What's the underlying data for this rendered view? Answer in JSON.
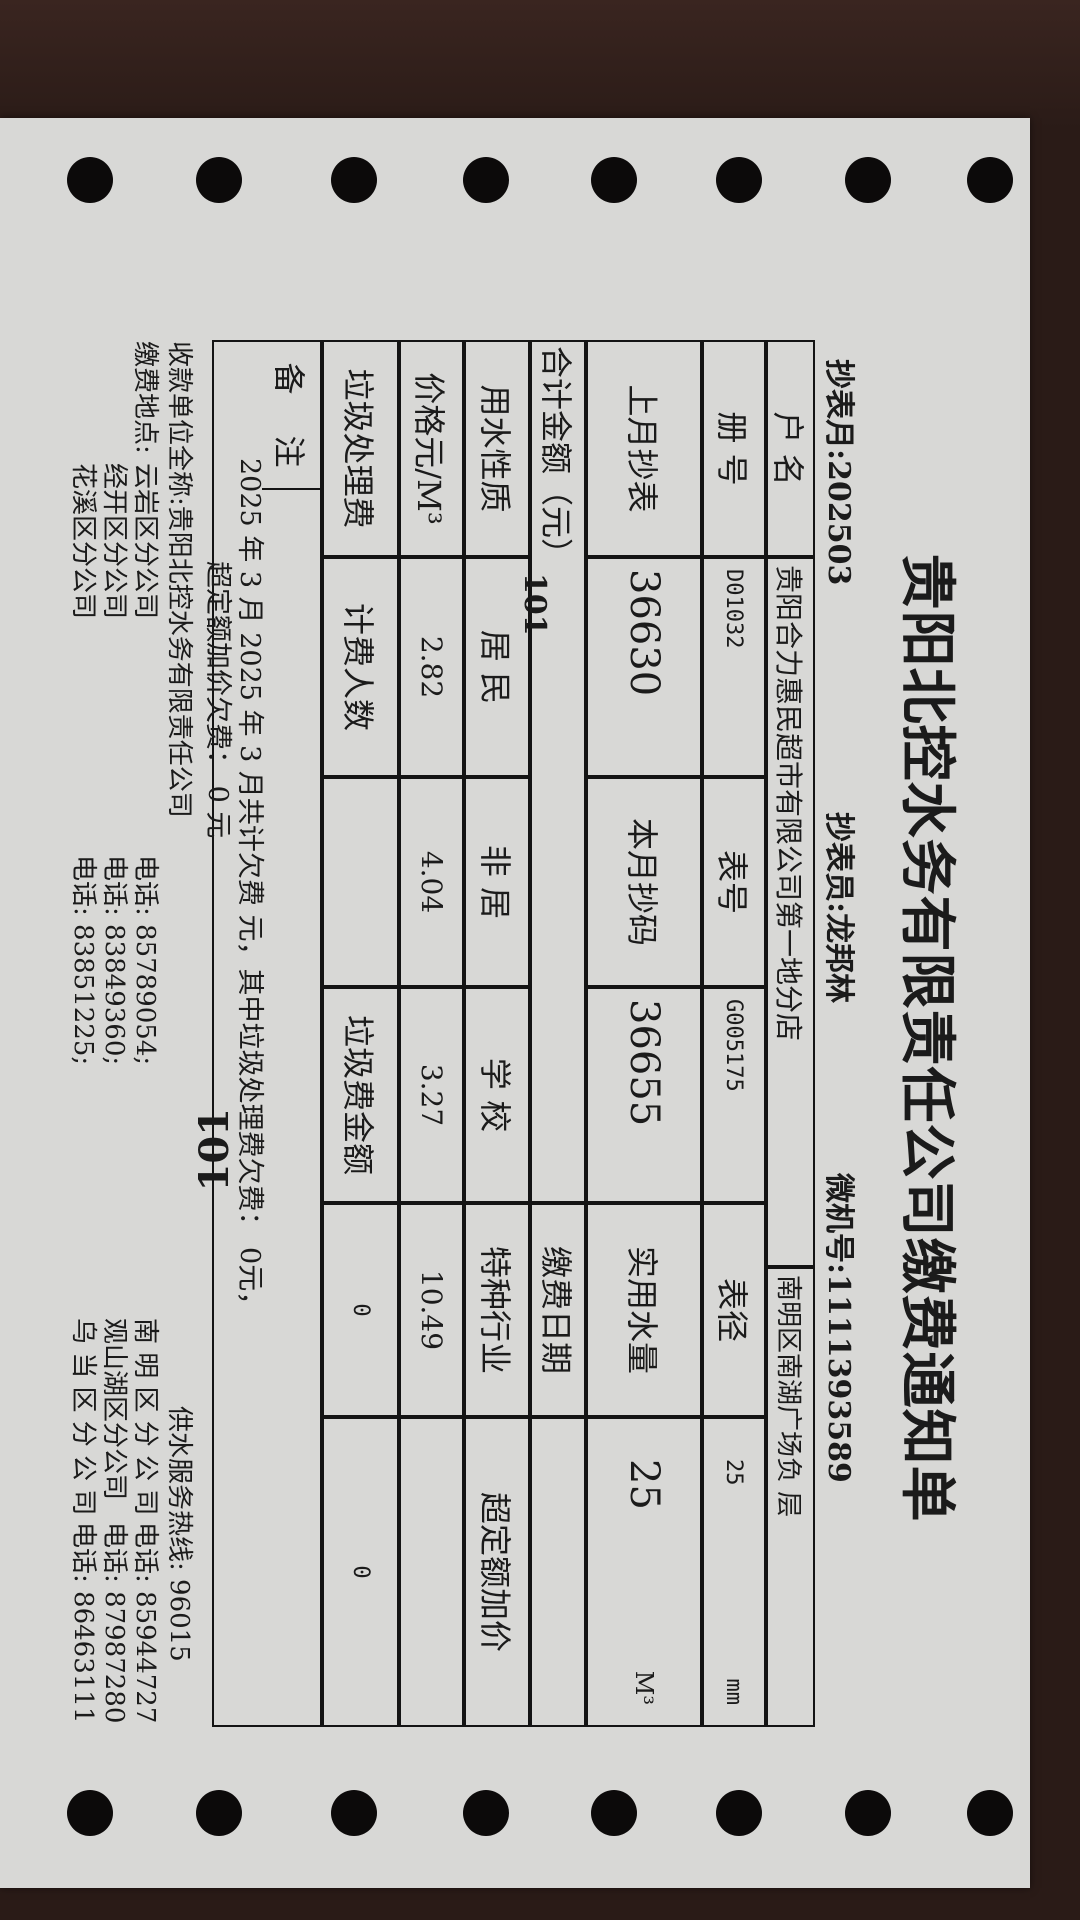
{
  "title": "贵阳北控水务有限责任公司缴费通知单",
  "header": {
    "reading_month": "抄表月:202503",
    "meter_reader": "抄表员:龙邦林",
    "computer_no": "微机号:1111393589"
  },
  "table": {
    "account_name_label": "户 名",
    "account_name": "贵阳合力惠民超市有限公司第一地分店",
    "address": "南明区南湖广场负 层",
    "book_no_label": "册 号",
    "book_no": "D01032",
    "meter_no_label": "表号",
    "meter_no": "G005175",
    "meter_diameter_label": "表径",
    "meter_diameter": "25",
    "meter_diameter_unit": "mm",
    "last_reading_label": "上月抄表",
    "last_reading": "36630",
    "current_reading_label": "本月抄码",
    "current_reading": "36655",
    "actual_usage_label": "实用水量",
    "actual_usage": "25",
    "actual_usage_unit": "M³",
    "total_label": "合计金额（元）",
    "total_amount": "101",
    "payment_date_label": "缴费日期",
    "payment_date": "",
    "water_type_label": "用水性质",
    "water_types": [
      "居 民",
      "非 居",
      "学 校",
      "特种行业",
      "超定额加价"
    ],
    "price_label": "价格元/M³",
    "prices": [
      "2.82",
      "4.04",
      "3.27",
      "10.49",
      ""
    ],
    "garbage_fee_label": "垃圾处理费",
    "billing_people_label": "计费人数",
    "billing_people": "",
    "garbage_amount_label": "垃圾费金额",
    "garbage_amount": "0",
    "garbage_extra": "0",
    "remarks_label_1": "备",
    "remarks_label_2": "注"
  },
  "remarks": {
    "line1": "2025 年  3  月 2025 年  3  月共计欠费          元，其中垃圾处理费欠费：        0元，",
    "line2": "超定额加价欠费：   0     元",
    "arrears_total": "101"
  },
  "footer": {
    "payee": "收款单位全称:贵阳北控水务有限责任公司",
    "payment_place_label": "缴费地点:",
    "branches_left": [
      {
        "name": "云岩区分公司",
        "phone": "电话:  85789054;"
      },
      {
        "name": "经开区分公司",
        "phone": "电话:  83849360;"
      },
      {
        "name": "花溪区分公司",
        "phone": "电话:  83851225;"
      }
    ],
    "hotline": "供水服务热线:  96015",
    "branches_right": [
      {
        "name": "南 明 区 分 公 司",
        "phone": "电话:  85944727"
      },
      {
        "name": "观山湖区分公司",
        "phone": "电话:  87987280"
      },
      {
        "name": "乌 当 区 分 公 司",
        "phone": "电话:  86463111"
      }
    ]
  }
}
